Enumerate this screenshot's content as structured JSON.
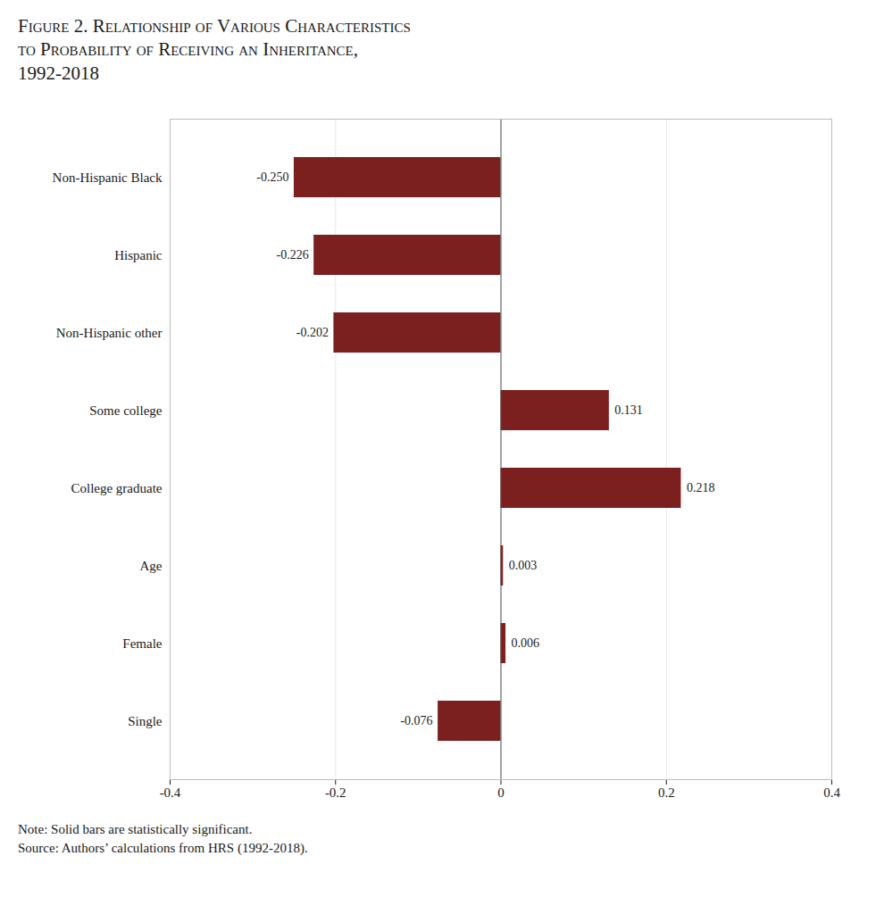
{
  "chart_data": {
    "type": "bar",
    "orientation": "horizontal",
    "title": "Figure 2. Relationship of Various Characteristics\nto Probability of Receiving an Inheritance,\n1992-2018",
    "categories": [
      "Non-Hispanic Black",
      "Hispanic",
      "Non-Hispanic other",
      "Some college",
      "College graduate",
      "Age",
      "Female",
      "Single"
    ],
    "values": [
      -0.25,
      -0.226,
      -0.202,
      0.131,
      0.218,
      0.003,
      0.006,
      -0.076
    ],
    "value_labels": [
      "-0.250",
      "-0.226",
      "-0.202",
      "0.131",
      "0.218",
      "0.003",
      "0.006",
      "-0.076"
    ],
    "data_labels": true,
    "color": "#7B1F1F",
    "xlim": [
      -0.4,
      0.4
    ],
    "xticks": [
      -0.4,
      -0.2,
      0,
      0.2,
      0.4
    ],
    "grid": true,
    "annotations": [
      "Note: Solid bars are statistically significant.",
      "Source: Authors’ calculations from HRS (1992-2018)."
    ]
  }
}
